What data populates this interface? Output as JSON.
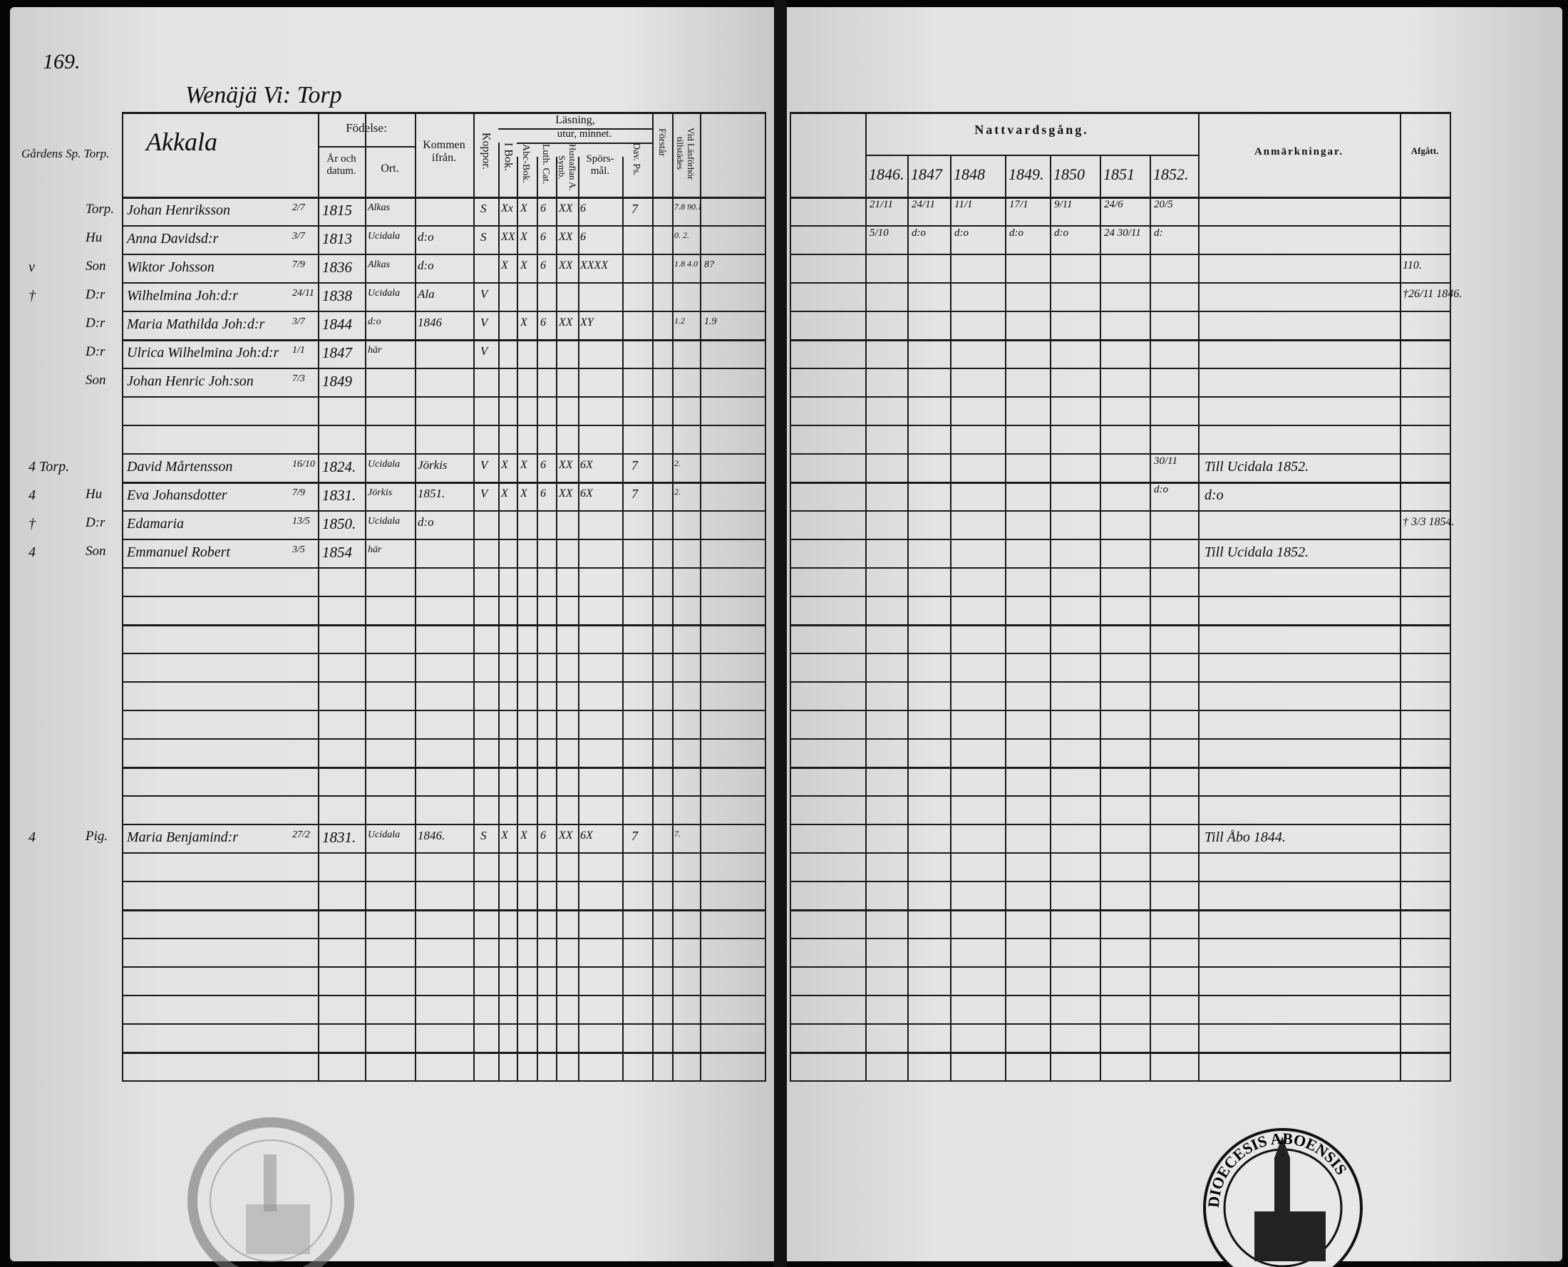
{
  "page_number": "169.",
  "village": "Wenäjä Vi: Torp",
  "farm_name": "Akkala",
  "left_header": {
    "fodelse": "Födelse:",
    "ar_och_datum": "År och datum.",
    "ort": "Ort.",
    "kommen_fran": "Kommen ifrån.",
    "koppor": "Koppor.",
    "lasning": "Läsning,",
    "utur_minnet": "utur, minnet.",
    "i_bok": "I Bok.",
    "abc_bok": "Abc-Bok.",
    "luth_cat": "Luth. Cat.",
    "hustaflan": "Hustaflan A. Symb.",
    "sporsmal": "Spörs-mål.",
    "dav_ps": "Dav. Ps.",
    "forstar": "Förstår",
    "vid_lasforhor": "Vid Läsförhör tillstädes"
  },
  "left_margin_note": "Gårdens Sp. Torp.",
  "left_rows": [
    {
      "relation": "Torp.",
      "name": "Johan Henriksson",
      "date": "2/7",
      "year": "1815",
      "place": "Alkas",
      "koppor": "S",
      "i_bok": "Xx",
      "abc": "X",
      "luth": "6",
      "husta": "XX",
      "spors": "6",
      "dav": "7",
      "lasf": "7.8 90.1"
    },
    {
      "relation": "Hu",
      "name": "Anna Davidsd:r",
      "date": "3/7",
      "year": "1813",
      "place": "Ucidala",
      "from": "d:o",
      "koppor": "S",
      "i_bok": "XX",
      "abc": "X",
      "luth": "6",
      "husta": "XX",
      "spors": "6",
      "lasf": "0. 2."
    },
    {
      "margin": "v",
      "relation": "Son",
      "name": "Wiktor Johsson",
      "date": "7/9",
      "year": "1836",
      "place": "Alkas",
      "from": "d:o",
      "i_bok": "X",
      "abc": "X",
      "luth": "6",
      "husta": "XX",
      "spors": "XXXX",
      "lasf": "1.8 4.0",
      "extra": "8?"
    },
    {
      "margin": "†",
      "relation": "D:r",
      "name": "Wilhelmina Joh:d:r",
      "date": "24/11",
      "year": "1838",
      "place": "Ucidala",
      "from": "Ala",
      "koppor": "V"
    },
    {
      "relation": "D:r",
      "name": "Maria Mathilda Joh:d:r",
      "date": "3/7",
      "year": "1844",
      "place": "d:o",
      "from": "1846",
      "koppor": "V",
      "abc": "X",
      "luth": "6",
      "husta": "XX",
      "spors": "XY",
      "lasf": "1.2",
      "extra": "1.9"
    },
    {
      "relation": "D:r",
      "name": "Ulrica Wilhelmina Joh:d:r",
      "date": "1/1",
      "year": "1847",
      "place": "här",
      "koppor": "V"
    },
    {
      "relation": "Son",
      "name": "Johan Henric Joh:son",
      "date": "7/3",
      "year": "1849"
    },
    {},
    {},
    {
      "margin": "4 Torp.",
      "name": "David Mårtensson",
      "date": "16/10",
      "year": "1824.",
      "place": "Ucidala",
      "from": "Jörkis",
      "koppor": "V",
      "i_bok": "X",
      "abc": "X",
      "luth": "6",
      "husta": "XX",
      "spors": "6X",
      "dav": "7",
      "lasf": "2."
    },
    {
      "margin": "4",
      "relation": "Hu",
      "name": "Eva Johansdotter",
      "date": "7/9",
      "year": "1831.",
      "place": "Jörkis",
      "from": "1851.",
      "koppor": "V",
      "i_bok": "X",
      "abc": "X",
      "luth": "6",
      "husta": "XX",
      "spors": "6X",
      "dav": "7",
      "lasf": "2."
    },
    {
      "margin": "†",
      "relation": "D:r",
      "name": "Edamaria",
      "date": "13/5",
      "year": "1850.",
      "place": "Ucidala",
      "from": "d:o"
    },
    {
      "margin": "4",
      "relation": "Son",
      "name": "Emmanuel Robert",
      "date": "3/5",
      "year": "1854",
      "place": "här"
    },
    {},
    {},
    {},
    {},
    {},
    {},
    {},
    {},
    {},
    {
      "margin": "4",
      "relation": "Pig.",
      "name": "Maria Benjamind:r",
      "date": "27/2",
      "year": "1831.",
      "place": "Ucidala",
      "from": "1846.",
      "koppor": "S",
      "i_bok": "X",
      "abc": "X",
      "luth": "6",
      "husta": "XX",
      "spors": "6X",
      "dav": "7",
      "lasf": "7."
    },
    {},
    {},
    {},
    {},
    {},
    {},
    {},
    {}
  ],
  "right_header": {
    "nattvardsgang": "Nattvardsgång.",
    "years": [
      "1846.",
      "1847",
      "1848",
      "1849.",
      "1850",
      "1851",
      "1852."
    ],
    "anmarkningar": "Anmärkningar.",
    "afgatt": "Afgått."
  },
  "right_rows": [
    {
      "y": [
        "21/11",
        "24/11",
        "11/1",
        "17/1",
        "9/11",
        "24/6",
        "20/5"
      ]
    },
    {
      "y": [
        "5/10",
        "d:o",
        "d:o",
        "d:o",
        "d:o",
        "24 30/11",
        "d:"
      ]
    },
    {
      "afgatt": "110."
    },
    {
      "afgatt": "†26/11 1846."
    },
    {},
    {},
    {},
    {},
    {},
    {
      "y": [
        "",
        "",
        "",
        "",
        "",
        "",
        "30/11"
      ],
      "remarks": "Till Ucidala 1852."
    },
    {
      "y": [
        "",
        "",
        "",
        "",
        "",
        "",
        "d:o"
      ],
      "remarks": "d:o"
    },
    {
      "afgatt": "† 3/3 1854."
    },
    {
      "remarks": "Till Ucidala 1852."
    },
    {},
    {},
    {},
    {},
    {},
    {},
    {},
    {},
    {},
    {
      "remarks": "Till Åbo 1844."
    },
    {},
    {},
    {},
    {},
    {},
    {},
    {},
    {}
  ],
  "stamp_text": "FINL. DIOECESIS ABOENSIS MAGN."
}
